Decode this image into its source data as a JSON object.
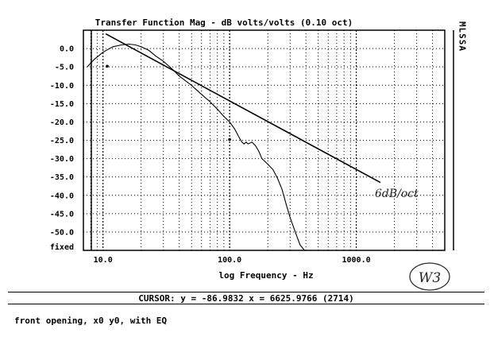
{
  "chart_data": {
    "type": "line",
    "title": "Transfer Function Mag - dB volts/volts (0.10 oct)",
    "xlabel": "log Frequency - Hz",
    "ylabel": "",
    "x_scale": "log",
    "xlim": [
      7,
      5000
    ],
    "ylim": [
      -55,
      5
    ],
    "grid": true,
    "y_ticks": [
      {
        "value": 0,
        "label": "0.0"
      },
      {
        "value": -5,
        "label": "-5.0"
      },
      {
        "value": -10,
        "label": "-10.0"
      },
      {
        "value": -15,
        "label": "-15.0"
      },
      {
        "value": -20,
        "label": "-20.0"
      },
      {
        "value": -25,
        "label": "-25.0"
      },
      {
        "value": -30,
        "label": "-30.0"
      },
      {
        "value": -35,
        "label": "-35.0"
      },
      {
        "value": -40,
        "label": "-40.0"
      },
      {
        "value": -45,
        "label": "-45.0"
      },
      {
        "value": -50,
        "label": "-50.0"
      }
    ],
    "y_bottom_label": "fixed",
    "x_ticks": [
      {
        "value": 10,
        "label": "10.0"
      },
      {
        "value": 100,
        "label": "100.0"
      },
      {
        "value": 1000,
        "label": "1000.0"
      }
    ],
    "side_label": "MLSSA",
    "series": [
      {
        "x": [
          7.5,
          8.5,
          10,
          12,
          14,
          16,
          18,
          20,
          23,
          26,
          30,
          35,
          40,
          50,
          60,
          70,
          80,
          90,
          100,
          110,
          120,
          125,
          130,
          135,
          140,
          150,
          160,
          170,
          180,
          200,
          220,
          240,
          260,
          280,
          300,
          330,
          360,
          390
        ],
        "y": [
          -5,
          -3,
          -1,
          0.5,
          1,
          1.2,
          1,
          0.5,
          -0.5,
          -2,
          -3.5,
          -5.5,
          -7.5,
          -10,
          -12.5,
          -14.5,
          -16.5,
          -18.5,
          -20,
          -22,
          -24.5,
          -25.5,
          -26,
          -25.5,
          -26,
          -25.5,
          -26.5,
          -28,
          -30,
          -31.5,
          -33,
          -35.5,
          -38.5,
          -42.5,
          -46,
          -50,
          -53.5,
          -56
        ]
      },
      {
        "x": [
          10.5,
          1550
        ],
        "y": [
          4,
          -36.5
        ]
      }
    ],
    "markers": [
      {
        "x": 10.8,
        "y": -4.8
      },
      {
        "x": 100,
        "y": -24.8
      }
    ],
    "annotations": [
      "6dB/oct",
      "W3"
    ]
  },
  "cursor_text": "CURSOR: y = -86.9832 x = 6625.9766 (2714)",
  "caption": "front opening, x0 y0, with EQ"
}
